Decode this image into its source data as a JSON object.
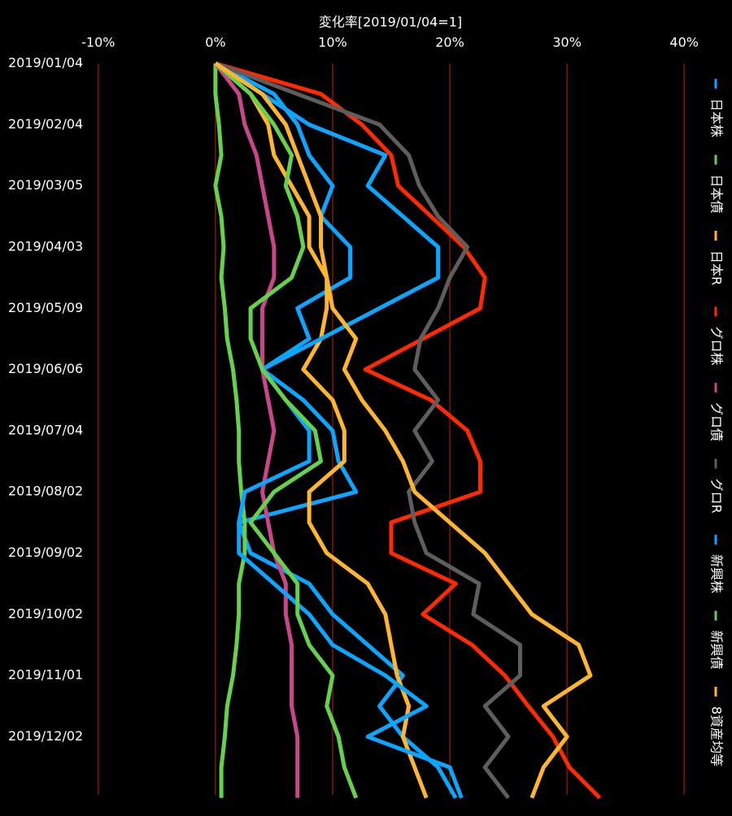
{
  "chart_data": {
    "type": "line",
    "orientation": "horizontal",
    "x_label": "変化率[2019/01/04=1]",
    "categories": [
      "2019/01/04",
      null,
      "2019/02/04",
      null,
      "2019/03/05",
      null,
      "2019/04/03",
      null,
      "2019/05/09",
      null,
      "2019/06/06",
      null,
      "2019/07/04",
      null,
      "2019/08/02",
      null,
      "2019/09/02",
      null,
      "2019/10/02",
      null,
      "2019/11/01",
      null,
      "2019/12/02",
      null,
      null
    ],
    "xlim": [
      -12,
      42
    ],
    "xticks": [
      {
        "value": -10,
        "label": "-10%"
      },
      {
        "value": 0,
        "label": "0%"
      },
      {
        "value": 10,
        "label": "10%"
      },
      {
        "value": 20,
        "label": "20%"
      },
      {
        "value": 30,
        "label": "30%"
      },
      {
        "value": 40,
        "label": "40%"
      }
    ],
    "grid": true,
    "legend": "right",
    "series": [
      {
        "name": "日本株",
        "color": "#0aa6ff",
        "values": [
          0,
          5,
          7,
          8,
          10,
          9,
          11.5,
          11.5,
          7,
          8,
          4,
          7.5,
          10,
          10.5,
          12,
          2,
          3,
          8,
          10,
          13,
          16,
          14,
          16,
          19,
          20.5
        ]
      },
      {
        "name": "日本債",
        "color": "#66d14a",
        "values": [
          0,
          0,
          0.3,
          0.5,
          0,
          0.5,
          0.7,
          0.5,
          0.8,
          1,
          1.5,
          1.8,
          2,
          2,
          2.2,
          2.5,
          2.5,
          2,
          2,
          1.8,
          1.5,
          1,
          0.8,
          0.5,
          0.5
        ]
      },
      {
        "name": "日本R",
        "color": "#ffb52e",
        "values": [
          0,
          3,
          4.5,
          5,
          6.5,
          8,
          8,
          9.5,
          9.5,
          9,
          7.5,
          10,
          11,
          11,
          8,
          8,
          9.5,
          13,
          14.5,
          15,
          15.5,
          16.5,
          16,
          17,
          18
        ]
      },
      {
        "name": "グロ株",
        "color": "#ff2a00",
        "values": [
          0,
          9,
          12.5,
          15,
          15.6,
          18.4,
          21.2,
          23,
          22.6,
          17.7,
          12.8,
          18.4,
          21.5,
          22.6,
          22.6,
          15,
          15,
          20.5,
          17.7,
          21.9,
          24.7,
          26.7,
          28.8,
          30.2,
          32.8
        ]
      },
      {
        "name": "グロ債",
        "color": "#c8468a",
        "values": [
          0,
          2,
          2.5,
          3.5,
          4,
          4.5,
          5,
          5,
          4,
          4,
          4,
          4.5,
          5,
          4.5,
          4,
          4.5,
          5,
          6,
          6,
          6.5,
          6.5,
          6.5,
          7,
          7,
          7
        ]
      },
      {
        "name": "グロR",
        "color": "#5e5e5e",
        "values": [
          0,
          7,
          14,
          16.5,
          17.4,
          19,
          21.5,
          20,
          19,
          17.5,
          17,
          19,
          17,
          18.5,
          16.5,
          17,
          18,
          22.5,
          22,
          26,
          26,
          23,
          25,
          23,
          25
        ]
      },
      {
        "name": "新興株",
        "color": "#0aa6ff",
        "values": [
          0,
          4,
          8,
          14.5,
          13,
          16,
          19,
          19,
          14,
          9,
          4,
          6,
          8,
          8,
          2.5,
          2,
          2,
          5,
          8,
          10,
          14.5,
          18,
          13,
          20,
          21
        ]
      },
      {
        "name": "新興債",
        "color": "#66d14a",
        "values": [
          0,
          3,
          5,
          6.5,
          6,
          7,
          7.5,
          6.5,
          3,
          3,
          4,
          6,
          8.5,
          9,
          5,
          3,
          5,
          7,
          7,
          8,
          10,
          9.5,
          10.5,
          11,
          12
        ]
      },
      {
        "name": "8資産均等",
        "color": "#ffb52e",
        "values": [
          0,
          4,
          6,
          7,
          8,
          9,
          9,
          9.5,
          10,
          12,
          11,
          12.5,
          14.5,
          16,
          17,
          20,
          23,
          25,
          27,
          31,
          32,
          28,
          30,
          28,
          27
        ]
      }
    ]
  }
}
